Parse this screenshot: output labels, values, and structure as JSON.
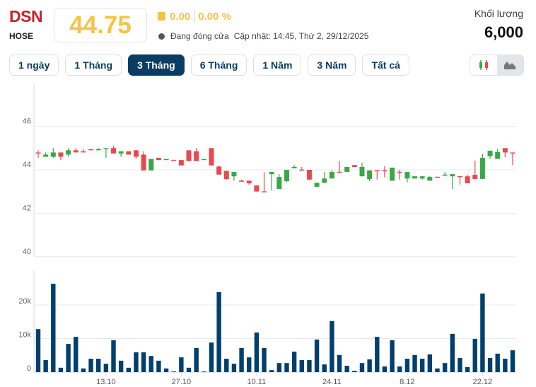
{
  "header": {
    "symbol": "DSN",
    "exchange": "HOSE",
    "price": "44.75",
    "change": "0.00",
    "change_pct": "0.00 %",
    "status": "Đang đóng cửa",
    "updated": "Cập nhật: 14:45, Thứ 2, 29/12/2025",
    "volume_label": "Khối lượng",
    "volume_value": "6,000"
  },
  "tabs": [
    {
      "label": "1 ngày"
    },
    {
      "label": "1 Tháng"
    },
    {
      "label": "3 Tháng",
      "active": true
    },
    {
      "label": "6 Tháng"
    },
    {
      "label": "1 Năm"
    },
    {
      "label": "3 Năm"
    },
    {
      "label": "Tất cả"
    }
  ],
  "chart_type_buttons": [
    {
      "icon": "candlestick-icon"
    },
    {
      "icon": "area-chart-icon",
      "active": true
    }
  ],
  "colors": {
    "up": "#3aa845",
    "down": "#e9494e",
    "volume": "#003f6e",
    "accent": "#0b3d63",
    "price": "#f5c345",
    "symbol": "#c8222a"
  },
  "chart_data": {
    "type": "candlestick",
    "price_axis": {
      "ticks": [
        "40",
        "42",
        "44",
        "46"
      ],
      "range": [
        39.9,
        47.8
      ]
    },
    "volume_axis": {
      "ticks": [
        "0",
        "10k",
        "20k"
      ],
      "range": [
        0,
        30000
      ]
    },
    "x_labels": [
      {
        "index": 9,
        "label": "13.10"
      },
      {
        "index": 19,
        "label": "27.10"
      },
      {
        "index": 29,
        "label": "10.11"
      },
      {
        "index": 39,
        "label": "24.11"
      },
      {
        "index": 49,
        "label": "8.12"
      },
      {
        "index": 59,
        "label": "22.12"
      }
    ],
    "candles": [
      [
        44.8,
        44.9,
        44.55,
        44.8,
        "d"
      ],
      [
        44.6,
        44.8,
        44.6,
        44.7,
        "u"
      ],
      [
        44.6,
        45.0,
        44.55,
        44.8,
        "u"
      ],
      [
        44.8,
        44.8,
        44.45,
        44.6,
        "d"
      ],
      [
        44.7,
        45.0,
        44.6,
        44.9,
        "u"
      ],
      [
        44.9,
        45.0,
        44.8,
        44.8,
        "d"
      ],
      [
        44.85,
        44.95,
        44.8,
        44.8,
        "d"
      ],
      [
        44.95,
        44.95,
        44.9,
        44.9,
        "d"
      ],
      [
        44.9,
        45.0,
        44.9,
        44.95,
        "u"
      ],
      [
        44.97,
        45.0,
        44.55,
        45.0,
        "u"
      ],
      [
        45.0,
        45.1,
        44.75,
        44.75,
        "d"
      ],
      [
        44.75,
        44.85,
        44.6,
        44.85,
        "u"
      ],
      [
        44.85,
        44.85,
        44.7,
        44.7,
        "d"
      ],
      [
        44.9,
        44.9,
        44.5,
        44.6,
        "d"
      ],
      [
        44.7,
        44.85,
        43.97,
        43.97,
        "d"
      ],
      [
        43.97,
        44.5,
        43.97,
        44.5,
        "u"
      ],
      [
        44.55,
        44.55,
        44.45,
        44.45,
        "d"
      ],
      [
        44.45,
        44.5,
        44.45,
        44.5,
        "u"
      ],
      [
        44.46,
        44.46,
        44.44,
        44.45,
        "d"
      ],
      [
        44.45,
        44.45,
        44.2,
        44.2,
        "d"
      ],
      [
        44.9,
        44.9,
        44.4,
        44.4,
        "d"
      ],
      [
        44.85,
        45.0,
        44.4,
        44.4,
        "d"
      ],
      [
        44.45,
        44.5,
        44.45,
        44.5,
        "u"
      ],
      [
        45.0,
        45.0,
        44.2,
        44.2,
        "d"
      ],
      [
        44.15,
        44.2,
        43.78,
        43.78,
        "d"
      ],
      [
        43.95,
        43.95,
        43.55,
        43.57,
        "d"
      ],
      [
        43.7,
        43.9,
        43.5,
        43.9,
        "u"
      ],
      [
        43.5,
        43.55,
        43.48,
        43.48,
        "d"
      ],
      [
        43.5,
        43.5,
        43.32,
        43.38,
        "d"
      ],
      [
        43.28,
        43.28,
        43.0,
        43.0,
        "d"
      ],
      [
        43.01,
        43.9,
        43.0,
        43.0,
        "d"
      ],
      [
        43.8,
        43.9,
        43.05,
        43.9,
        "u"
      ],
      [
        43.12,
        43.8,
        43.12,
        43.67,
        "u"
      ],
      [
        43.48,
        44.0,
        43.42,
        44.0,
        "u"
      ],
      [
        44.07,
        44.22,
        44.07,
        44.13,
        "u"
      ],
      [
        44.01,
        44.13,
        44.0,
        44.0,
        "d"
      ],
      [
        44.0,
        44.0,
        43.52,
        43.55,
        "d"
      ],
      [
        43.22,
        43.4,
        43.22,
        43.4,
        "u"
      ],
      [
        43.4,
        43.9,
        43.4,
        43.6,
        "u"
      ],
      [
        43.6,
        44.0,
        43.6,
        43.9,
        "u"
      ],
      [
        43.91,
        44.42,
        43.9,
        43.9,
        "d"
      ],
      [
        43.9,
        44.13,
        43.9,
        44.13,
        "u"
      ],
      [
        44.22,
        44.22,
        44.13,
        44.13,
        "d"
      ],
      [
        43.7,
        44.33,
        43.7,
        44.13,
        "u"
      ],
      [
        43.57,
        43.97,
        43.48,
        43.97,
        "u"
      ],
      [
        43.98,
        43.98,
        43.55,
        43.97,
        "d"
      ],
      [
        43.98,
        44.17,
        43.65,
        43.97,
        "d"
      ],
      [
        43.5,
        44.1,
        43.5,
        44.1,
        "u"
      ],
      [
        43.91,
        44.0,
        43.55,
        43.9,
        "d"
      ],
      [
        43.6,
        43.9,
        43.42,
        43.9,
        "u"
      ],
      [
        43.6,
        43.72,
        43.6,
        43.7,
        "u"
      ],
      [
        43.6,
        43.7,
        43.55,
        43.7,
        "u"
      ],
      [
        43.5,
        43.72,
        43.5,
        43.67,
        "u"
      ],
      [
        43.68,
        43.68,
        43.66,
        43.67,
        "d"
      ],
      [
        43.76,
        43.9,
        43.7,
        43.78,
        "u"
      ],
      [
        43.7,
        43.8,
        43.12,
        43.8,
        "u"
      ],
      [
        43.71,
        43.71,
        43.32,
        43.7,
        "d"
      ],
      [
        43.7,
        43.77,
        43.38,
        43.38,
        "d"
      ],
      [
        43.77,
        44.42,
        43.58,
        43.58,
        "d"
      ],
      [
        43.58,
        44.72,
        43.58,
        44.55,
        "u"
      ],
      [
        44.62,
        44.88,
        44.5,
        44.88,
        "u"
      ],
      [
        44.5,
        44.95,
        44.5,
        44.82,
        "u"
      ],
      [
        45.0,
        45.0,
        44.58,
        44.8,
        "d"
      ],
      [
        44.8,
        44.8,
        44.22,
        44.75,
        "d"
      ]
    ],
    "volumes": [
      12800,
      3600,
      26300,
      1300,
      8400,
      10500,
      1100,
      4000,
      4000,
      2500,
      9500,
      3400,
      1300,
      5900,
      5900,
      4800,
      3400,
      1100,
      200,
      4400,
      1300,
      7200,
      200,
      8800,
      23800,
      4000,
      2500,
      7200,
      4400,
      11800,
      7200,
      600,
      2700,
      2700,
      6100,
      3600,
      3600,
      9700,
      2300,
      15200,
      5100,
      1900,
      400,
      2700,
      3800,
      10500,
      1700,
      9500,
      1700,
      4000,
      5100,
      4000,
      5300,
      1100,
      2700,
      11400,
      4200,
      1500,
      9900,
      23400,
      4200,
      5500,
      4000,
      6500
    ]
  }
}
